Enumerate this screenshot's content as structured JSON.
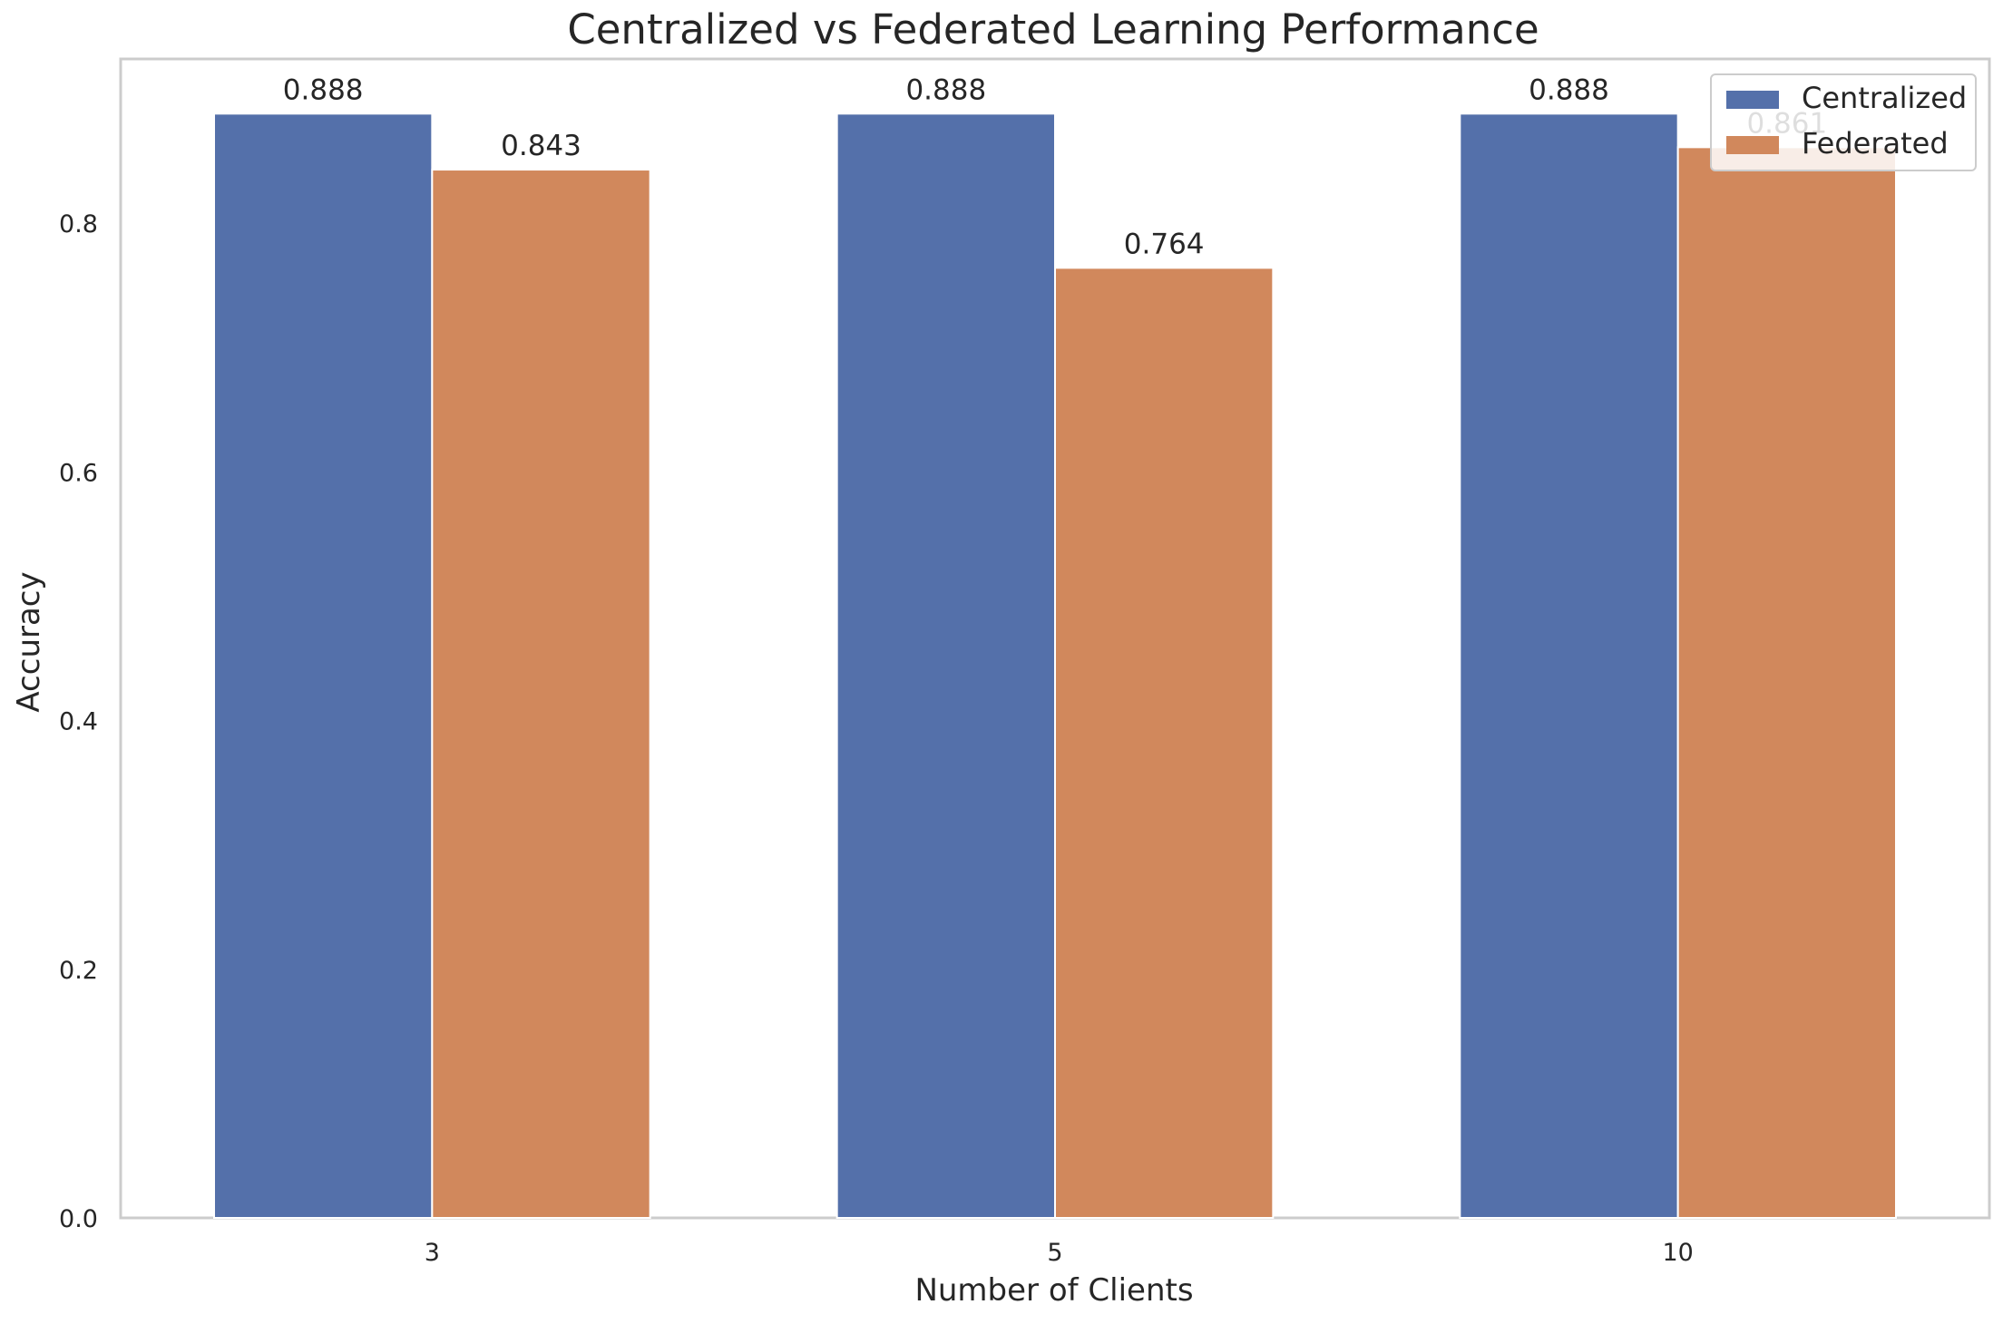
{
  "chart_data": {
    "type": "bar",
    "title": "Centralized vs Federated Learning Performance",
    "xlabel": "Number of Clients",
    "ylabel": "Accuracy",
    "categories": [
      "3",
      "5",
      "10"
    ],
    "series": [
      {
        "name": "Centralized",
        "values": [
          0.888,
          0.888,
          0.888
        ],
        "labels": [
          "0.888",
          "0.888",
          "0.888"
        ],
        "color": "#5470aa"
      },
      {
        "name": "Federated",
        "values": [
          0.843,
          0.764,
          0.861
        ],
        "labels": [
          "0.843",
          "0.764",
          "0.861"
        ],
        "color": "#d1885c"
      }
    ],
    "ylim": [
      0,
      0.932
    ],
    "yticks": [
      0.0,
      0.2,
      0.4,
      0.6,
      0.8
    ],
    "ytick_labels": [
      "0.0",
      "0.2",
      "0.4",
      "0.6",
      "0.8"
    ],
    "grid": false,
    "legend_position": "top-right"
  }
}
